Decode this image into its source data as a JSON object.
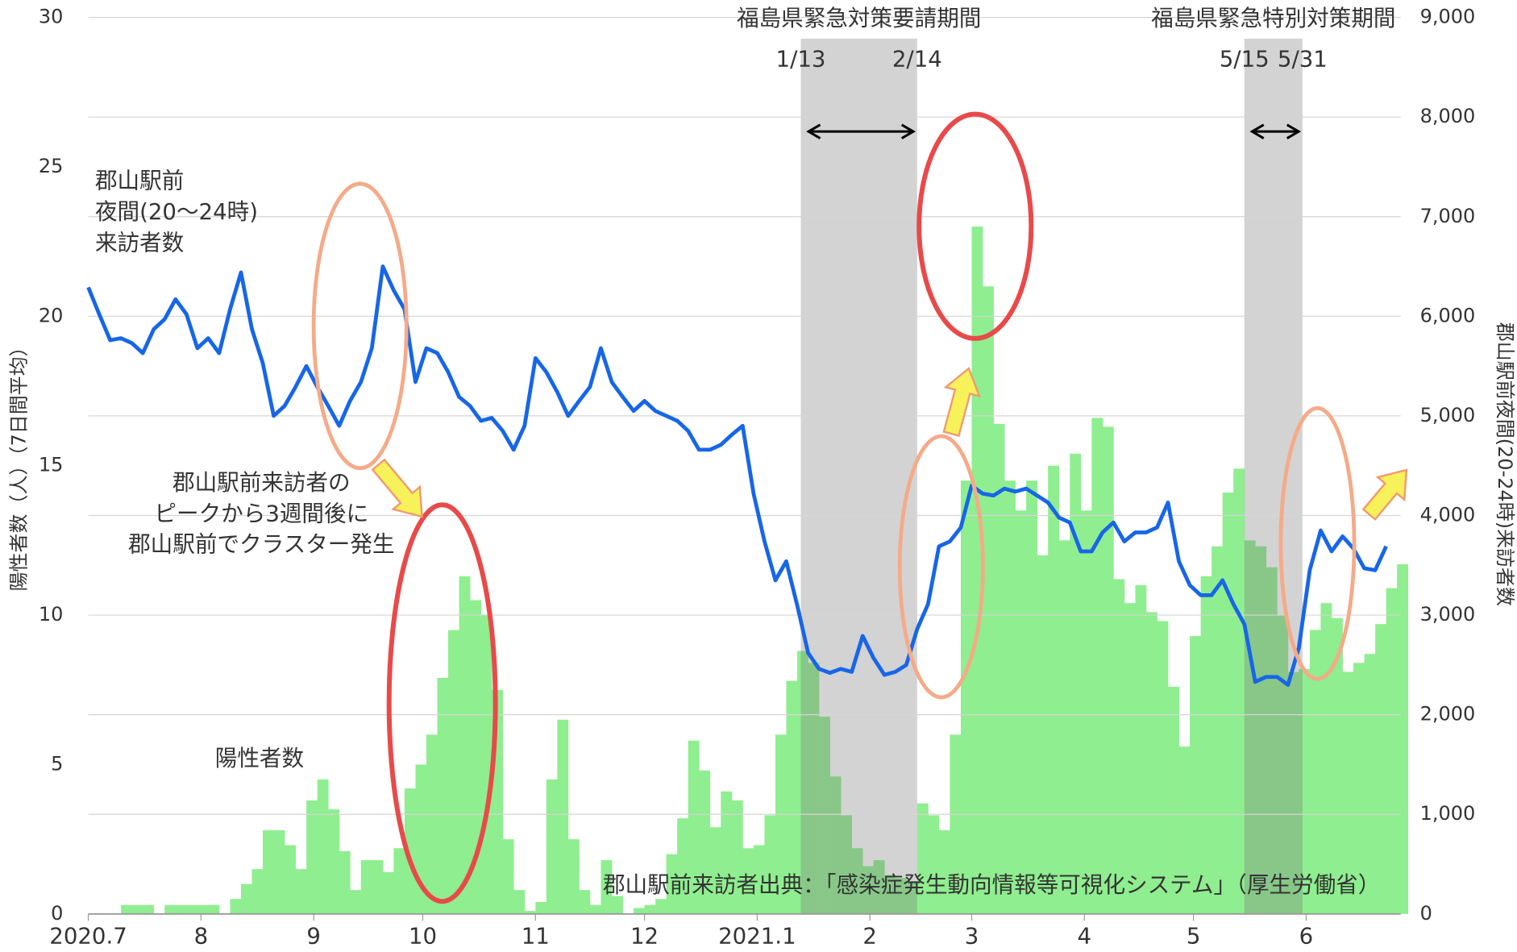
{
  "chart_data": {
    "type": "bar_line",
    "x": [
      0,
      3,
      6,
      9,
      12,
      15,
      18,
      21,
      24,
      27,
      30,
      33,
      36,
      39,
      42,
      45,
      48,
      51,
      54,
      57,
      60,
      63,
      66,
      69,
      72,
      75,
      78,
      81,
      84,
      87,
      90,
      93,
      96,
      99,
      102,
      105,
      108,
      111,
      114,
      117,
      120,
      123,
      126,
      129,
      132,
      135,
      138,
      141,
      144,
      147,
      150,
      153,
      156,
      159,
      162,
      165,
      168,
      171,
      174,
      177,
      180,
      183,
      186,
      189,
      192,
      195,
      198,
      201,
      204,
      207,
      210,
      213,
      216,
      219,
      222,
      225,
      228,
      231,
      234,
      237,
      240,
      243,
      246,
      249,
      252,
      255,
      258,
      261,
      264,
      267,
      270,
      273,
      276,
      279,
      282,
      285,
      288,
      291,
      294,
      297,
      300,
      303,
      306,
      309,
      312,
      315,
      318,
      321,
      324,
      327,
      330,
      333,
      336,
      339,
      342,
      345,
      348,
      351,
      354,
      357,
      360
    ],
    "xlim": [
      0,
      361
    ],
    "xticks": [
      {
        "value": 0,
        "label": "2020.7"
      },
      {
        "value": 31,
        "label": "8"
      },
      {
        "value": 62,
        "label": "9"
      },
      {
        "value": 92,
        "label": "10"
      },
      {
        "value": 123,
        "label": "11"
      },
      {
        "value": 153,
        "label": "12"
      },
      {
        "value": 184,
        "label": "2021.1"
      },
      {
        "value": 215,
        "label": "2"
      },
      {
        "value": 243,
        "label": "3"
      },
      {
        "value": 274,
        "label": "4"
      },
      {
        "value": 304,
        "label": "5"
      },
      {
        "value": 335,
        "label": "6"
      }
    ],
    "ylim": [
      0,
      30
    ],
    "yticks": [
      0,
      5,
      10,
      15,
      20,
      25,
      30
    ],
    "y2lim": [
      0,
      9000
    ],
    "y2ticks": [
      0,
      {
        "value": 1000,
        "label": "1,000"
      },
      {
        "value": 2000,
        "label": "2,000"
      },
      {
        "value": 3000,
        "label": "3,000"
      },
      {
        "value": 4000,
        "label": "4,000"
      },
      {
        "value": 5000,
        "label": "5,000"
      },
      {
        "value": 6000,
        "label": "6,000"
      },
      {
        "value": 7000,
        "label": "7,000"
      },
      {
        "value": 8000,
        "label": "8,000"
      },
      {
        "value": 9000,
        "label": "9,000"
      }
    ],
    "grid": true,
    "ylabel": "陽性者数（人）（7日間平均）",
    "y2label": "郡山駅前夜間(20-24時)来訪者数",
    "series": [
      {
        "type": "bar",
        "color": "#8fee8f",
        "values": [
          0,
          0,
          0,
          0.3,
          0.3,
          0.3,
          0,
          0.3,
          0.3,
          0.3,
          0.3,
          0.3,
          0,
          0.5,
          1,
          1.5,
          2.8,
          2.8,
          2.3,
          1.5,
          3.8,
          4.5,
          3.5,
          2.1,
          0.8,
          1.8,
          1.8,
          1.4,
          2.2,
          4.2,
          5,
          6,
          7.9,
          9.5,
          11.3,
          10.5,
          10,
          7.5,
          2.5,
          0.8,
          0.1,
          0.4,
          4.5,
          6.5,
          2.5,
          0.8,
          0.3,
          1.8,
          0.6,
          0,
          0.2,
          0.3,
          0.5,
          2,
          3.2,
          5.8,
          4.8,
          2.9,
          4.1,
          3.8,
          2.2,
          2.3,
          3.3,
          6,
          7.8,
          8.8,
          8.4,
          6.6,
          4.6,
          3.3,
          2.2,
          1.6,
          1.8,
          1.3,
          1.2,
          1.1,
          3.7,
          3.3,
          2.8,
          6,
          14.5,
          23,
          21,
          16.4,
          14.5,
          13.5,
          14.5,
          12,
          15,
          12.5,
          15.4,
          13.5,
          16.6,
          16.3,
          11.2,
          10.4,
          11,
          10.1,
          9.8,
          7.6,
          5.6,
          9.3,
          11.3,
          12.3,
          14.1,
          14.9,
          12.5,
          12.3,
          11.6,
          10,
          8.1,
          8.2,
          9.5,
          10.4,
          9.9,
          8.1,
          8.4,
          8.7,
          9.7,
          10.9,
          11.7
        ]
      },
      {
        "type": "line",
        "axis": "y2",
        "color": "#1766e8",
        "values": [
          6290,
          6020,
          5760,
          5780,
          5730,
          5630,
          5870,
          5970,
          6170,
          6020,
          5680,
          5780,
          5630,
          6070,
          6440,
          5870,
          5530,
          5000,
          5100,
          5290,
          5500,
          5290,
          5100,
          4900,
          5150,
          5340,
          5680,
          6500,
          6260,
          6070,
          5340,
          5680,
          5630,
          5440,
          5190,
          5100,
          4950,
          4980,
          4850,
          4660,
          4900,
          5580,
          5440,
          5240,
          5000,
          5150,
          5290,
          5680,
          5340,
          5190,
          5050,
          5150,
          5050,
          5000,
          4950,
          4850,
          4660,
          4660,
          4710,
          4810,
          4900,
          4220,
          3740,
          3350,
          3540,
          3100,
          2620,
          2460,
          2420,
          2460,
          2430,
          2790,
          2570,
          2400,
          2430,
          2500,
          2860,
          3110,
          3690,
          3740,
          3880,
          4300,
          4220,
          4200,
          4270,
          4240,
          4270,
          4200,
          4130,
          3980,
          3930,
          3640,
          3640,
          3830,
          3930,
          3740,
          3830,
          3830,
          3880,
          4130,
          3540,
          3300,
          3200,
          3200,
          3350,
          3110,
          2910,
          2330,
          2380,
          2380,
          2300,
          2670,
          3450,
          3850,
          3640,
          3790,
          3670,
          3470,
          3450,
          3690,
          null
        ]
      }
    ],
    "periods": [
      {
        "title": "福島県緊急対策要請期間",
        "start_label": "1/13",
        "end_label": "2/14",
        "start": 196,
        "end": 228
      },
      {
        "title": "福島県緊急特別対策期間",
        "start_label": "5/15",
        "end_label": "5/31",
        "start": 318,
        "end": 334
      }
    ],
    "annotations": {
      "visitors_label": [
        "郡山駅前",
        "夜間(20〜24時)",
        "来訪者数"
      ],
      "cases_label": "陽性者数",
      "cluster_note": [
        "郡山駅前来訪者の",
        "ピークから3週間後に",
        "郡山駅前でクラスター発生"
      ],
      "source": "郡山駅前来訪者出典：「感染症発生動向情報等可視化システム」（厚生労働省）"
    }
  }
}
